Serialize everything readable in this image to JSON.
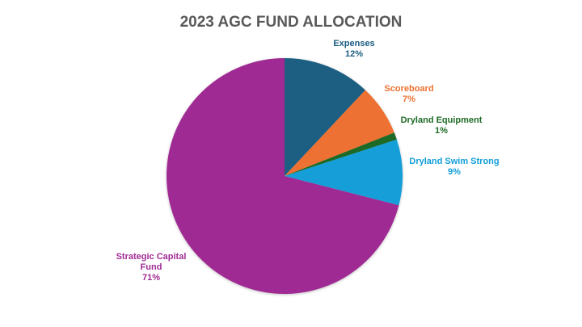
{
  "chart_data": {
    "type": "pie",
    "title": "2023 AGC FUND ALLOCATION",
    "categories": [
      "Expenses",
      "Scoreboard",
      "Dryland Equipment",
      "Dryland Swim Strong",
      "Strategic Capital Fund"
    ],
    "values": [
      12,
      7,
      1,
      9,
      71
    ],
    "unit": "%",
    "colors": [
      "#1b5e82",
      "#ed7130",
      "#1e6b25",
      "#129ed8",
      "#a02b93"
    ],
    "legend": "none (data labels outside slices)",
    "labels": [
      {
        "name": "Expenses",
        "pct": "12%"
      },
      {
        "name": "Scoreboard",
        "pct": "7%"
      },
      {
        "name": "Dryland Equipment",
        "pct": "1%"
      },
      {
        "name": "Dryland Swim Strong",
        "pct": "9%"
      },
      {
        "name_line1": "Strategic Capital",
        "name_line2": "Fund",
        "pct": "71%"
      }
    ]
  }
}
